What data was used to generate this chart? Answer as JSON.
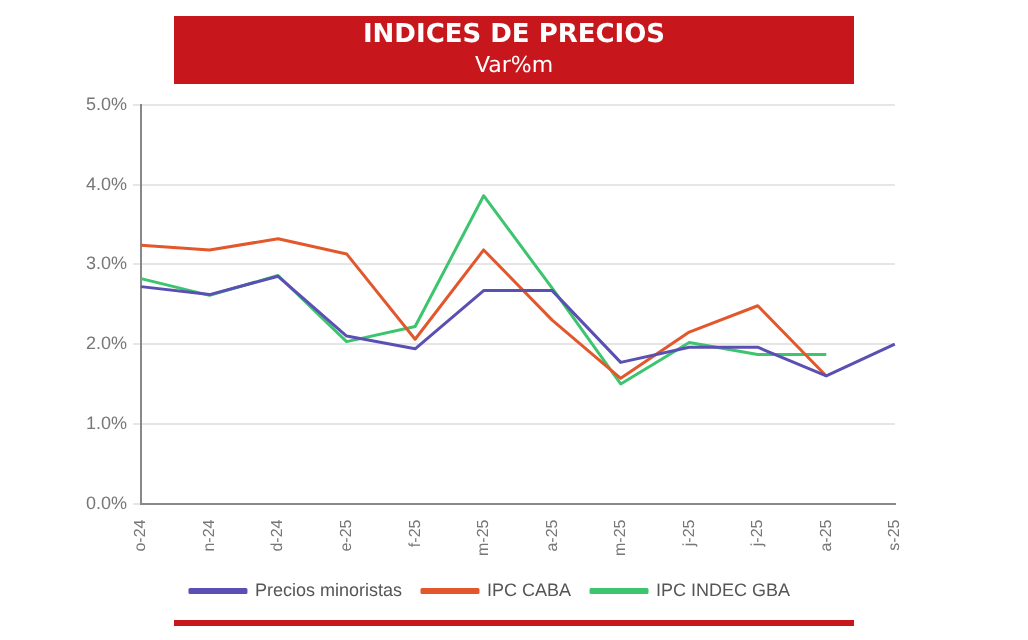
{
  "chart_data": {
    "type": "line",
    "title": "INDICES DE PRECIOS",
    "subtitle": "Var%m",
    "categories": [
      "o-24",
      "n-24",
      "d-24",
      "e-25",
      "f-25",
      "m-25",
      "a-25",
      "m-25",
      "j-25",
      "j-25",
      "a-25",
      "s-25"
    ],
    "series": [
      {
        "name": "Precios minoristas",
        "color": "#5a4fb3",
        "values": [
          2.72,
          2.62,
          2.85,
          2.1,
          1.94,
          2.67,
          2.67,
          1.77,
          1.96,
          1.96,
          1.6,
          2.0
        ]
      },
      {
        "name": "IPC CABA",
        "color": "#e2572c",
        "values": [
          3.24,
          3.18,
          3.32,
          3.13,
          2.06,
          3.18,
          2.3,
          1.57,
          2.15,
          2.48,
          1.6,
          null
        ]
      },
      {
        "name": "IPC INDEC GBA",
        "color": "#3cc46e",
        "values": [
          2.82,
          2.61,
          2.86,
          2.03,
          2.22,
          3.86,
          2.7,
          1.5,
          2.02,
          1.87,
          1.87,
          null
        ]
      }
    ],
    "ylim": [
      0,
      5
    ],
    "yticks": [
      {
        "value": 0,
        "label": "0.0%"
      },
      {
        "value": 1,
        "label": "1.0%"
      },
      {
        "value": 2,
        "label": "2.0%"
      },
      {
        "value": 3,
        "label": "3.0%"
      },
      {
        "value": 4,
        "label": "4.0%"
      },
      {
        "value": 5,
        "label": "5.0%"
      }
    ],
    "grid": "y",
    "legend": "bottom",
    "marker": "none",
    "line_style": "solid"
  }
}
